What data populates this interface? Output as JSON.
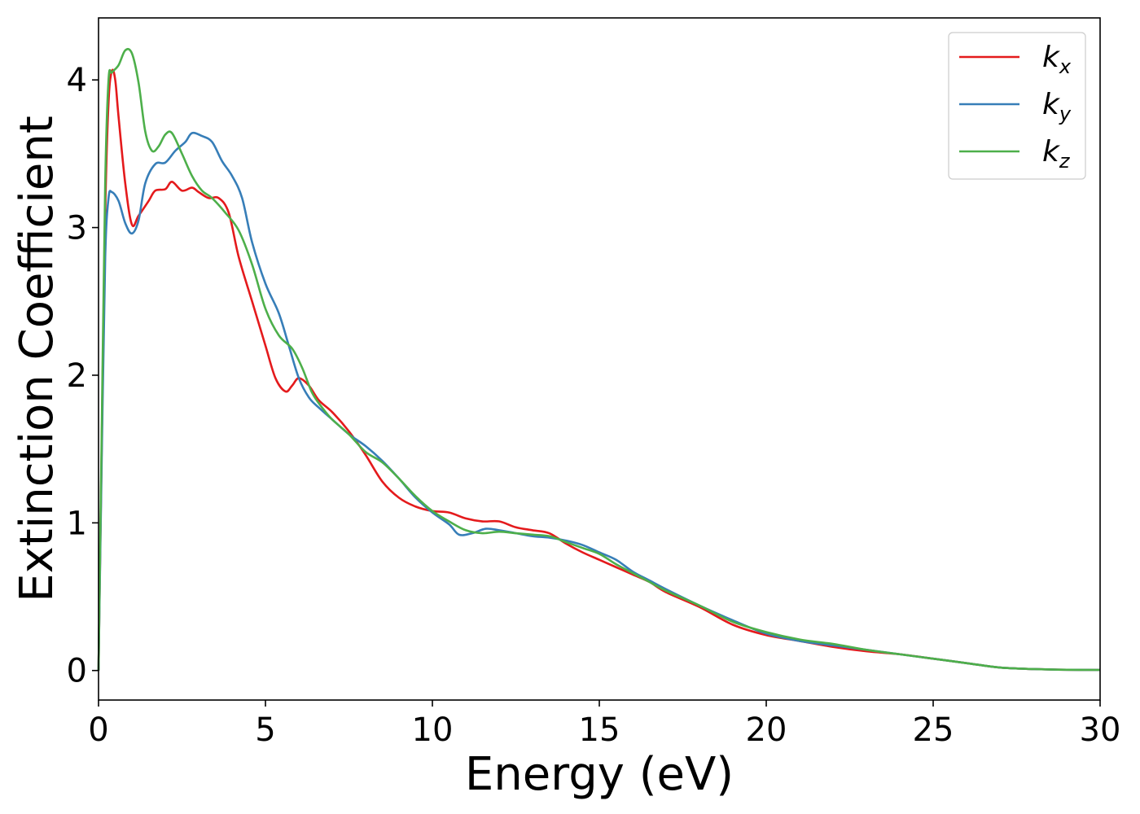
{
  "chart_data": {
    "type": "line",
    "title": "",
    "xlabel": "Energy (eV)",
    "ylabel": "Extinction Coefficient",
    "xlim": [
      0,
      30
    ],
    "ylim": [
      -0.2,
      4.42
    ],
    "xticks": [
      0,
      5,
      10,
      15,
      20,
      25,
      30
    ],
    "yticks": [
      0,
      1,
      2,
      3,
      4
    ],
    "grid": false,
    "legend_position": "top-right",
    "series": [
      {
        "name": "k",
        "subscript": "x",
        "color": "#e41a1c",
        "points": [
          [
            0,
            0
          ],
          [
            0.1,
            1.6
          ],
          [
            0.2,
            3.1
          ],
          [
            0.3,
            3.85
          ],
          [
            0.4,
            4.06
          ],
          [
            0.5,
            4.0
          ],
          [
            0.6,
            3.75
          ],
          [
            0.8,
            3.3
          ],
          [
            1.0,
            3.02
          ],
          [
            1.2,
            3.08
          ],
          [
            1.5,
            3.18
          ],
          [
            1.7,
            3.25
          ],
          [
            2.0,
            3.26
          ],
          [
            2.2,
            3.31
          ],
          [
            2.5,
            3.25
          ],
          [
            2.8,
            3.27
          ],
          [
            3.0,
            3.24
          ],
          [
            3.3,
            3.2
          ],
          [
            3.6,
            3.2
          ],
          [
            3.9,
            3.1
          ],
          [
            4.2,
            2.8
          ],
          [
            4.6,
            2.5
          ],
          [
            5.0,
            2.2
          ],
          [
            5.3,
            1.98
          ],
          [
            5.6,
            1.89
          ],
          [
            5.8,
            1.93
          ],
          [
            6.0,
            1.98
          ],
          [
            6.3,
            1.93
          ],
          [
            6.6,
            1.83
          ],
          [
            7.0,
            1.75
          ],
          [
            7.5,
            1.62
          ],
          [
            8.0,
            1.46
          ],
          [
            8.5,
            1.28
          ],
          [
            9.0,
            1.17
          ],
          [
            9.5,
            1.11
          ],
          [
            10.0,
            1.08
          ],
          [
            10.5,
            1.07
          ],
          [
            11.0,
            1.03
          ],
          [
            11.5,
            1.01
          ],
          [
            12.0,
            1.01
          ],
          [
            12.5,
            0.97
          ],
          [
            13.0,
            0.95
          ],
          [
            13.5,
            0.93
          ],
          [
            14.0,
            0.86
          ],
          [
            14.5,
            0.8
          ],
          [
            15.0,
            0.75
          ],
          [
            15.5,
            0.7
          ],
          [
            16.0,
            0.65
          ],
          [
            16.5,
            0.6
          ],
          [
            17.0,
            0.53
          ],
          [
            18.0,
            0.43
          ],
          [
            19.0,
            0.31
          ],
          [
            20.0,
            0.24
          ],
          [
            21.0,
            0.2
          ],
          [
            22.0,
            0.16
          ],
          [
            23.0,
            0.13
          ],
          [
            24.0,
            0.11
          ],
          [
            25.0,
            0.08
          ],
          [
            26.0,
            0.05
          ],
          [
            27.0,
            0.02
          ],
          [
            28.0,
            0.01
          ],
          [
            29.0,
            0.005
          ],
          [
            30.0,
            0.004
          ]
        ]
      },
      {
        "name": "k",
        "subscript": "y",
        "color": "#377eb8",
        "points": [
          [
            0,
            0
          ],
          [
            0.1,
            1.5
          ],
          [
            0.2,
            2.8
          ],
          [
            0.3,
            3.2
          ],
          [
            0.4,
            3.24
          ],
          [
            0.6,
            3.18
          ],
          [
            0.8,
            3.03
          ],
          [
            1.0,
            2.96
          ],
          [
            1.2,
            3.05
          ],
          [
            1.4,
            3.3
          ],
          [
            1.7,
            3.43
          ],
          [
            2.0,
            3.44
          ],
          [
            2.3,
            3.52
          ],
          [
            2.6,
            3.58
          ],
          [
            2.8,
            3.64
          ],
          [
            3.1,
            3.62
          ],
          [
            3.4,
            3.58
          ],
          [
            3.7,
            3.45
          ],
          [
            4.0,
            3.35
          ],
          [
            4.3,
            3.2
          ],
          [
            4.6,
            2.9
          ],
          [
            5.0,
            2.62
          ],
          [
            5.4,
            2.42
          ],
          [
            5.7,
            2.2
          ],
          [
            6.0,
            1.98
          ],
          [
            6.3,
            1.85
          ],
          [
            6.6,
            1.78
          ],
          [
            7.0,
            1.7
          ],
          [
            7.5,
            1.6
          ],
          [
            8.0,
            1.52
          ],
          [
            8.5,
            1.42
          ],
          [
            9.0,
            1.3
          ],
          [
            9.5,
            1.17
          ],
          [
            10.0,
            1.07
          ],
          [
            10.5,
            0.99
          ],
          [
            10.8,
            0.92
          ],
          [
            11.2,
            0.93
          ],
          [
            11.6,
            0.96
          ],
          [
            12.0,
            0.95
          ],
          [
            12.5,
            0.93
          ],
          [
            13.0,
            0.91
          ],
          [
            13.5,
            0.9
          ],
          [
            14.0,
            0.88
          ],
          [
            14.5,
            0.85
          ],
          [
            15.0,
            0.8
          ],
          [
            15.5,
            0.75
          ],
          [
            16.0,
            0.67
          ],
          [
            16.5,
            0.61
          ],
          [
            17.0,
            0.55
          ],
          [
            18.0,
            0.44
          ],
          [
            19.0,
            0.34
          ],
          [
            20.0,
            0.25
          ],
          [
            21.0,
            0.2
          ],
          [
            22.0,
            0.17
          ],
          [
            23.0,
            0.14
          ],
          [
            24.0,
            0.11
          ],
          [
            25.0,
            0.08
          ],
          [
            26.0,
            0.05
          ],
          [
            27.0,
            0.02
          ],
          [
            28.0,
            0.01
          ],
          [
            29.0,
            0.005
          ],
          [
            30.0,
            0.004
          ]
        ]
      },
      {
        "name": "k",
        "subscript": "z",
        "color": "#4daf4a",
        "points": [
          [
            0,
            0
          ],
          [
            0.1,
            1.7
          ],
          [
            0.2,
            3.3
          ],
          [
            0.3,
            4.0
          ],
          [
            0.4,
            4.05
          ],
          [
            0.6,
            4.1
          ],
          [
            0.8,
            4.2
          ],
          [
            1.0,
            4.18
          ],
          [
            1.2,
            3.98
          ],
          [
            1.4,
            3.65
          ],
          [
            1.6,
            3.52
          ],
          [
            1.8,
            3.55
          ],
          [
            2.0,
            3.63
          ],
          [
            2.2,
            3.64
          ],
          [
            2.5,
            3.5
          ],
          [
            2.8,
            3.35
          ],
          [
            3.1,
            3.25
          ],
          [
            3.4,
            3.2
          ],
          [
            3.8,
            3.1
          ],
          [
            4.2,
            2.98
          ],
          [
            4.6,
            2.75
          ],
          [
            5.0,
            2.45
          ],
          [
            5.4,
            2.27
          ],
          [
            5.8,
            2.18
          ],
          [
            6.1,
            2.05
          ],
          [
            6.4,
            1.88
          ],
          [
            6.7,
            1.78
          ],
          [
            7.0,
            1.7
          ],
          [
            7.5,
            1.6
          ],
          [
            8.0,
            1.48
          ],
          [
            8.5,
            1.41
          ],
          [
            9.0,
            1.3
          ],
          [
            9.5,
            1.18
          ],
          [
            10.0,
            1.08
          ],
          [
            10.5,
            1.01
          ],
          [
            11.0,
            0.95
          ],
          [
            11.5,
            0.93
          ],
          [
            12.0,
            0.94
          ],
          [
            12.5,
            0.93
          ],
          [
            13.0,
            0.92
          ],
          [
            13.5,
            0.91
          ],
          [
            14.0,
            0.87
          ],
          [
            14.5,
            0.83
          ],
          [
            15.0,
            0.79
          ],
          [
            15.5,
            0.72
          ],
          [
            16.0,
            0.66
          ],
          [
            16.5,
            0.6
          ],
          [
            17.0,
            0.54
          ],
          [
            18.0,
            0.44
          ],
          [
            19.0,
            0.33
          ],
          [
            20.0,
            0.26
          ],
          [
            21.0,
            0.21
          ],
          [
            22.0,
            0.18
          ],
          [
            23.0,
            0.14
          ],
          [
            24.0,
            0.11
          ],
          [
            25.0,
            0.08
          ],
          [
            26.0,
            0.05
          ],
          [
            27.0,
            0.02
          ],
          [
            28.0,
            0.01
          ],
          [
            29.0,
            0.005
          ],
          [
            30.0,
            0.004
          ]
        ]
      }
    ]
  }
}
